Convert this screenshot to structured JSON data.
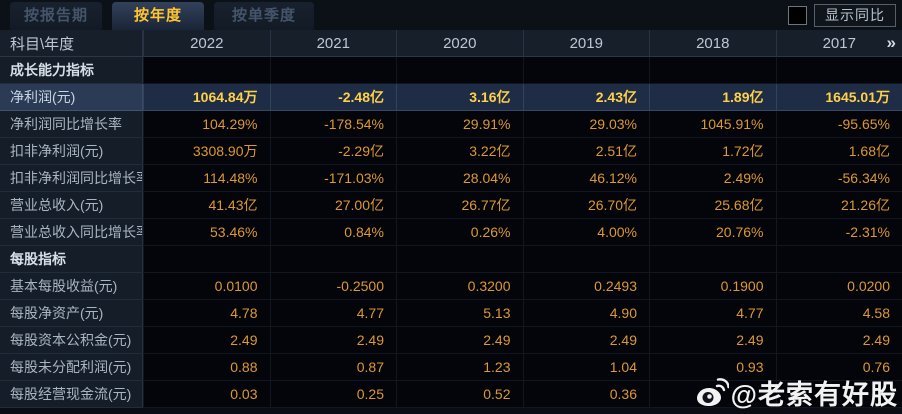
{
  "tabs": [
    {
      "label": "按报告期",
      "active": false
    },
    {
      "label": "按年度",
      "active": true
    },
    {
      "label": "按单季度",
      "active": false
    }
  ],
  "controls": {
    "show_yoy_label": "显示同比",
    "checkbox_checked": false,
    "more_years_chevron": "»"
  },
  "table": {
    "corner_label": "科目\\年度",
    "years": [
      "2022",
      "2021",
      "2020",
      "2019",
      "2018",
      "2017"
    ],
    "rows": [
      {
        "type": "section",
        "label": "成长能力指标",
        "values": [
          "",
          "",
          "",
          "",
          "",
          ""
        ]
      },
      {
        "type": "highlight",
        "label": "净利润(元)",
        "values": [
          "1064.84万",
          "-2.48亿",
          "3.16亿",
          "2.43亿",
          "1.89亿",
          "1645.01万"
        ]
      },
      {
        "type": "data",
        "label": "净利润同比增长率",
        "values": [
          "104.29%",
          "-178.54%",
          "29.91%",
          "29.03%",
          "1045.91%",
          "-95.65%"
        ]
      },
      {
        "type": "data",
        "label": "扣非净利润(元)",
        "values": [
          "3308.90万",
          "-2.29亿",
          "3.22亿",
          "2.51亿",
          "1.72亿",
          "1.68亿"
        ]
      },
      {
        "type": "data",
        "label": "扣非净利润同比增长率",
        "values": [
          "114.48%",
          "-171.03%",
          "28.04%",
          "46.12%",
          "2.49%",
          "-56.34%"
        ]
      },
      {
        "type": "data",
        "label": "营业总收入(元)",
        "values": [
          "41.43亿",
          "27.00亿",
          "26.77亿",
          "26.70亿",
          "25.68亿",
          "21.26亿"
        ]
      },
      {
        "type": "data",
        "label": "营业总收入同比增长率",
        "values": [
          "53.46%",
          "0.84%",
          "0.26%",
          "4.00%",
          "20.76%",
          "-2.31%"
        ]
      },
      {
        "type": "section",
        "label": "每股指标",
        "values": [
          "",
          "",
          "",
          "",
          "",
          ""
        ]
      },
      {
        "type": "data",
        "label": "基本每股收益(元)",
        "values": [
          "0.0100",
          "-0.2500",
          "0.3200",
          "0.2493",
          "0.1900",
          "0.0200"
        ]
      },
      {
        "type": "data",
        "label": "每股净资产(元)",
        "values": [
          "4.78",
          "4.77",
          "5.13",
          "4.90",
          "4.77",
          "4.58"
        ]
      },
      {
        "type": "data",
        "label": "每股资本公积金(元)",
        "values": [
          "2.49",
          "2.49",
          "2.49",
          "2.49",
          "2.49",
          "2.49"
        ]
      },
      {
        "type": "data",
        "label": "每股未分配利润(元)",
        "values": [
          "0.88",
          "0.87",
          "1.23",
          "1.04",
          "0.93",
          "0.76"
        ]
      },
      {
        "type": "data",
        "label": "每股经营现金流(元)",
        "values": [
          "0.03",
          "0.25",
          "0.52",
          "0.36",
          "",
          ""
        ]
      }
    ]
  },
  "watermark": {
    "icon": "weibo-icon",
    "handle": "@老索有好股"
  },
  "colors": {
    "background": "#0a0e14",
    "active_tab_text": "#ffc62e",
    "value_text": "#dd9832",
    "highlight_value_text": "#ffd14a",
    "highlight_row_bg": "#1e2c45",
    "label_cell_bg": "#151d28",
    "header_bg": "#171f2b"
  }
}
